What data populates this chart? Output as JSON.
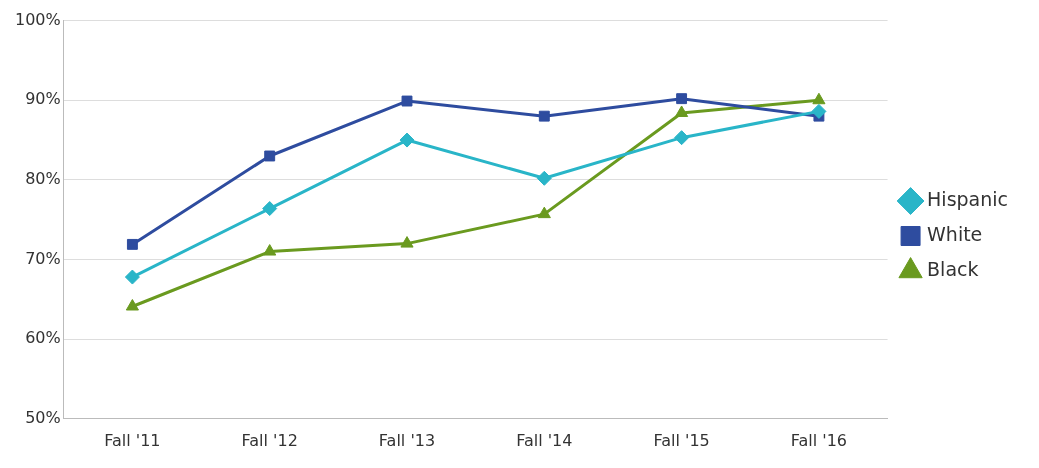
{
  "chart_data": {
    "type": "line",
    "categories": [
      "Fall '11",
      "Fall '12",
      "Fall '13",
      "Fall '14",
      "Fall '15",
      "Fall '16"
    ],
    "series": [
      {
        "name": "Hispanic",
        "color": "#29b5c8",
        "marker": "diamond",
        "values": [
          67.8,
          76.4,
          85.0,
          80.2,
          85.3,
          88.6
        ]
      },
      {
        "name": "White",
        "color": "#2e4c9f",
        "marker": "square",
        "values": [
          71.9,
          83.0,
          89.9,
          88.0,
          90.2,
          88.0
        ]
      },
      {
        "name": "Black",
        "color": "#6a9a1f",
        "marker": "triangle",
        "values": [
          64.1,
          71.0,
          72.0,
          75.7,
          88.4,
          90.0
        ]
      }
    ],
    "ylim": [
      50,
      100
    ],
    "yticks": [
      {
        "value": 50,
        "label": "50%"
      },
      {
        "value": 60,
        "label": "60%"
      },
      {
        "value": 70,
        "label": "70%"
      },
      {
        "value": 80,
        "label": "80%"
      },
      {
        "value": 90,
        "label": "90%"
      },
      {
        "value": 100,
        "label": "100%"
      }
    ],
    "grid": "y",
    "legend": "right",
    "line_style": "solid"
  }
}
